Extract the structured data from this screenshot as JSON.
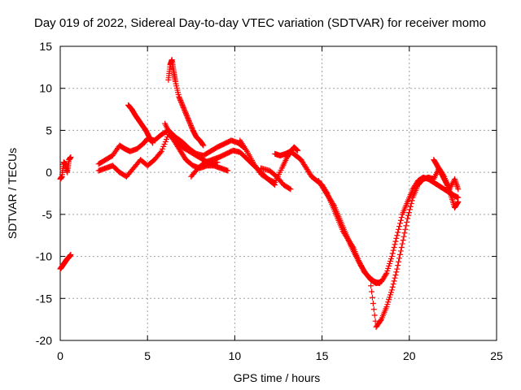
{
  "chart_data": {
    "type": "scatter",
    "title": "Day 019 of 2022, Sidereal Day-to-day VTEC variation (SDTVAR) for receiver momo",
    "xlabel": "GPS time / hours",
    "ylabel": "SDTVAR / TECUs",
    "xlim": [
      0,
      25
    ],
    "ylim": [
      -20,
      15
    ],
    "xticks": [
      0,
      5,
      10,
      15,
      20,
      25
    ],
    "yticks": [
      -20,
      -15,
      -10,
      -5,
      0,
      5,
      10,
      15
    ],
    "grid": true,
    "marker": "+",
    "series": [
      {
        "name": "SDTVAR",
        "color": "#ff0000",
        "segments": [
          {
            "x": [
              0.0,
              0.1,
              0.2,
              0.3,
              0.4,
              0.5,
              0.6
            ],
            "y": [
              -0.8,
              -0.5,
              1.2,
              1.0,
              0.0,
              1.5,
              1.8
            ]
          },
          {
            "x": [
              0.0,
              0.1,
              0.2,
              0.3,
              0.4,
              0.5,
              0.6
            ],
            "y": [
              -11.5,
              -11.2,
              -10.9,
              -10.6,
              -10.3,
              -10.1,
              -9.8
            ]
          },
          {
            "x": [
              2.2,
              2.6,
              3.0,
              3.4,
              3.7,
              4.0,
              4.4,
              4.8,
              5.0,
              5.4,
              5.8,
              6.2,
              6.6,
              7.0,
              7.4,
              7.8,
              8.2,
              8.6,
              9.0,
              9.4,
              9.8,
              10.2,
              10.5
            ],
            "y": [
              1.0,
              1.5,
              2.0,
              3.2,
              2.8,
              2.5,
              2.8,
              3.5,
              4.0,
              3.8,
              4.5,
              5.0,
              4.2,
              3.6,
              2.8,
              2.2,
              2.0,
              2.5,
              3.0,
              3.4,
              3.8,
              3.5,
              3.0
            ]
          },
          {
            "x": [
              2.2,
              2.6,
              3.0,
              3.4,
              3.8,
              4.2,
              4.6,
              5.0,
              5.4,
              5.8,
              6.2,
              6.6,
              7.0,
              7.4,
              7.8,
              8.2,
              8.6,
              9.0
            ],
            "y": [
              0.2,
              0.5,
              0.8,
              0.0,
              -0.5,
              0.5,
              1.5,
              0.8,
              1.5,
              2.5,
              4.5,
              3.8,
              3.0,
              2.5,
              2.0,
              1.5,
              1.0,
              1.2
            ]
          },
          {
            "x": [
              3.9,
              4.1,
              4.3,
              4.5,
              4.7,
              4.9,
              5.1,
              5.3
            ],
            "y": [
              8.0,
              7.5,
              6.8,
              6.2,
              5.6,
              5.0,
              4.2,
              3.5
            ]
          },
          {
            "x": [
              6.2,
              6.3,
              6.4,
              6.5,
              6.6,
              6.8,
              7.0,
              7.2,
              7.4,
              7.6,
              7.8,
              8.0,
              8.2
            ],
            "y": [
              11.0,
              12.8,
              13.4,
              12.0,
              10.8,
              9.0,
              8.0,
              7.0,
              6.0,
              5.0,
              4.2,
              3.8,
              3.2
            ]
          },
          {
            "x": [
              6.0,
              6.3,
              6.6,
              6.9,
              7.2,
              7.6,
              8.0,
              8.4,
              8.8,
              9.2,
              9.6
            ],
            "y": [
              5.8,
              4.5,
              3.5,
              2.5,
              1.5,
              0.8,
              0.5,
              0.8,
              0.8,
              0.5,
              0.2
            ]
          },
          {
            "x": [
              7.5,
              7.9,
              8.3,
              8.7,
              9.1,
              9.5,
              9.9,
              10.3,
              10.7,
              11.1,
              11.5,
              11.9,
              12.3
            ],
            "y": [
              -0.5,
              0.5,
              1.2,
              1.5,
              1.8,
              2.2,
              2.6,
              2.4,
              1.6,
              0.8,
              0.0,
              -0.8,
              -1.5
            ]
          },
          {
            "x": [
              10.3,
              10.7,
              11.1,
              11.5,
              11.9,
              12.3,
              12.7,
              13.0,
              13.2,
              13.4,
              13.6
            ],
            "y": [
              3.8,
              2.5,
              1.0,
              -0.2,
              -0.8,
              -1.2,
              0.5,
              1.8,
              2.5,
              3.0,
              2.6
            ]
          },
          {
            "x": [
              11.5,
              12.0,
              12.4,
              12.8,
              13.2
            ],
            "y": [
              0.5,
              0.2,
              -0.5,
              -1.5,
              -2.0
            ]
          },
          {
            "x": [
              12.3,
              12.6,
              12.9,
              13.2,
              13.5,
              13.8,
              14.1,
              14.4,
              14.7,
              15.0,
              15.3,
              15.6,
              15.9,
              16.2,
              16.5,
              16.8,
              17.1,
              17.4,
              17.7,
              18.0,
              18.3
            ],
            "y": [
              2.2,
              2.0,
              2.2,
              2.5,
              2.0,
              1.5,
              0.5,
              -0.5,
              -1.0,
              -1.5,
              -2.5,
              -4.0,
              -5.5,
              -7.0,
              -8.0,
              -9.0,
              -10.5,
              -11.8,
              -12.5,
              -13.0,
              -13.2
            ]
          },
          {
            "x": [
              14.8,
              15.1,
              15.4,
              15.7,
              16.0,
              16.3,
              16.6,
              16.9,
              17.2,
              17.5,
              17.8,
              18.1,
              18.4,
              18.7,
              19.0,
              19.3,
              19.6,
              19.9,
              20.2,
              20.5,
              20.8,
              21.1,
              21.4,
              21.7,
              22.0,
              22.3,
              22.6,
              22.8
            ],
            "y": [
              -1.0,
              -2.0,
              -3.0,
              -4.0,
              -5.5,
              -7.0,
              -8.5,
              -9.8,
              -11.0,
              -12.0,
              -12.8,
              -13.2,
              -13.0,
              -12.0,
              -10.0,
              -7.5,
              -5.0,
              -3.5,
              -2.0,
              -1.0,
              -0.6,
              -0.8,
              -1.2,
              -1.6,
              -2.0,
              -2.4,
              -2.8,
              -3.0
            ]
          },
          {
            "x": [
              17.8,
              18.1,
              18.4,
              18.7,
              19.0,
              19.3,
              19.6,
              19.9,
              20.2,
              20.5,
              20.8,
              21.1,
              21.4,
              21.7,
              22.0,
              22.3,
              22.6,
              22.8
            ],
            "y": [
              -13.5,
              -18.4,
              -17.5,
              -16.0,
              -14.0,
              -11.5,
              -8.5,
              -5.5,
              -3.0,
              -1.5,
              -0.8,
              -0.6,
              -0.8,
              0.5,
              -0.5,
              -2.0,
              -0.8,
              -2.0
            ]
          },
          {
            "x": [
              21.4,
              21.6,
              21.8,
              22.0,
              22.2,
              22.4,
              22.6,
              22.8
            ],
            "y": [
              1.5,
              0.8,
              0.0,
              -0.8,
              -1.6,
              -2.8,
              -4.2,
              -3.5
            ]
          }
        ]
      }
    ]
  }
}
